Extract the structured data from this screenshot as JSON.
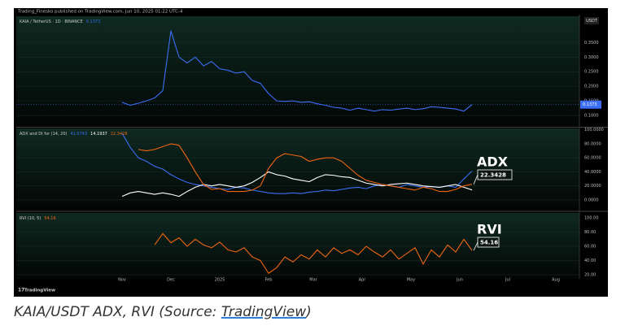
{
  "header": "Trading_Finesko published on TradingView.com, Jun 10, 2025 01:22 UTC-4",
  "currency": "USDT",
  "logo": "TradingView",
  "chart_data": [
    {
      "type": "line",
      "legend": "KAIA / TetherUS · 1D · BINANCE",
      "ylim": [
        0.064,
        0.44
      ],
      "yticks": [
        {
          "value": 0.1,
          "label": "0.1000"
        },
        {
          "value": 0.15,
          "label": "0.1500"
        },
        {
          "value": 0.2,
          "label": "0.2000"
        },
        {
          "value": 0.25,
          "label": "0.2500"
        },
        {
          "value": 0.3,
          "label": "0.3000"
        },
        {
          "value": 0.35,
          "label": "0.3500"
        }
      ],
      "series": [
        {
          "color": "#3b6ef5",
          "values": [
            0.145,
            0.135,
            0.142,
            0.15,
            0.16,
            0.185,
            0.39,
            0.3,
            0.28,
            0.3,
            0.27,
            0.285,
            0.26,
            0.255,
            0.245,
            0.25,
            0.22,
            0.21,
            0.175,
            0.15,
            0.148,
            0.15,
            0.145,
            0.147,
            0.14,
            0.135,
            0.128,
            0.125,
            0.118,
            0.125,
            0.12,
            0.115,
            0.12,
            0.118,
            0.122,
            0.125,
            0.12,
            0.123,
            0.13,
            0.128,
            0.125,
            0.122,
            0.115,
            0.1373
          ]
        }
      ]
    },
    {
      "type": "line",
      "legend": "ADX and DI for (14, 20)",
      "annotation": "ADX",
      "ylim": [
        -14,
        102
      ],
      "yticks": [
        {
          "value": 0,
          "label": "0.0000"
        },
        {
          "value": 20,
          "label": "20.0000"
        },
        {
          "value": 40,
          "label": "40.0000"
        },
        {
          "value": 60,
          "label": "60.0000"
        },
        {
          "value": 80,
          "label": "80.0000"
        },
        {
          "value": 100,
          "label": "100.0000"
        }
      ],
      "series": [
        {
          "color": "#3b6ef5",
          "values": [
            95,
            75,
            60,
            55,
            48,
            44,
            36,
            30,
            25,
            22,
            20,
            18,
            16,
            15,
            18,
            17,
            14,
            12,
            10,
            9,
            9,
            10,
            9,
            11,
            12,
            14,
            13,
            15,
            17,
            18,
            16,
            20,
            22,
            20,
            18,
            22,
            20,
            18,
            19,
            18,
            20,
            18,
            30,
            41.0743
          ]
        },
        {
          "color": "#ffffff",
          "values": [
            5,
            10,
            12,
            10,
            8,
            10,
            8,
            5,
            12,
            18,
            22,
            20,
            22,
            20,
            18,
            20,
            25,
            32,
            40,
            36,
            34,
            30,
            28,
            26,
            32,
            36,
            35,
            33,
            32,
            28,
            24,
            22,
            20,
            22,
            23,
            24,
            22,
            20,
            19,
            18,
            20,
            22,
            18,
            14.1937
          ]
        },
        {
          "color": "#ef6512",
          "values": [
            null,
            null,
            72,
            70,
            72,
            76,
            80,
            78,
            60,
            40,
            22,
            15,
            16,
            12,
            12,
            12,
            14,
            20,
            45,
            60,
            66,
            64,
            62,
            55,
            58,
            60,
            60,
            55,
            45,
            35,
            28,
            25,
            22,
            20,
            18,
            16,
            14,
            18,
            16,
            12,
            12,
            15,
            20,
            22.3428
          ]
        }
      ]
    },
    {
      "type": "line",
      "legend": "RVI (10, 5)",
      "annotation": "RVI",
      "ylim": [
        14.3,
        106.9
      ],
      "yticks": [
        {
          "value": 20,
          "label": "20.00"
        },
        {
          "value": 40,
          "label": "40.00"
        },
        {
          "value": 60,
          "label": "60.00"
        },
        {
          "value": 80,
          "label": "80.00"
        },
        {
          "value": 100,
          "label": "100.00"
        }
      ],
      "x_labels": [
        "Nov",
        "Dec",
        "2025",
        "Feb",
        "Mar",
        "Apr",
        "May",
        "Jun",
        "Jul",
        "Aug"
      ],
      "series": [
        {
          "color": "#ef6512",
          "values": [
            null,
            null,
            null,
            null,
            62,
            78,
            65,
            72,
            60,
            70,
            62,
            58,
            66,
            55,
            52,
            58,
            45,
            40,
            22,
            30,
            45,
            38,
            48,
            42,
            55,
            45,
            58,
            50,
            55,
            48,
            60,
            52,
            45,
            55,
            42,
            50,
            58,
            35,
            55,
            45,
            62,
            52,
            70,
            54.16
          ]
        }
      ]
    }
  ],
  "caption": {
    "text": "KAIA/USDT ADX, RVI (Source: ",
    "link": "TradingView",
    "end": ")"
  }
}
